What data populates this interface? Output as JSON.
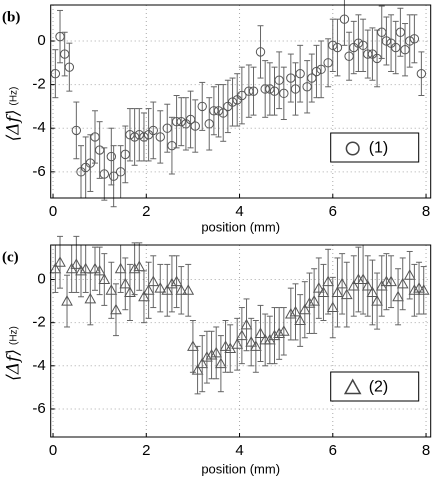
{
  "chart_data": [
    {
      "type": "scatter",
      "panel_label": "(b)",
      "ylabel": "⟨Δf⟩",
      "yunit": "(Hz)",
      "xlabel": "position (mm)",
      "xlim": [
        -0.05,
        8.1
      ],
      "ylim": [
        -7.2,
        1.65
      ],
      "xticks": [
        0,
        2,
        4,
        6,
        8
      ],
      "yticks": [
        0,
        -2,
        -4,
        -6
      ],
      "grid": true,
      "legend": "lower right",
      "series": [
        {
          "name": "(1)",
          "marker": "circle",
          "color": "#555555",
          "x": [
            0.05,
            0.15,
            0.25,
            0.35,
            0.5,
            0.6,
            0.7,
            0.8,
            0.9,
            1.0,
            1.1,
            1.25,
            1.3,
            1.45,
            1.55,
            1.65,
            1.75,
            1.85,
            1.95,
            2.05,
            2.15,
            2.3,
            2.45,
            2.55,
            2.65,
            2.75,
            2.85,
            2.95,
            3.05,
            3.2,
            3.35,
            3.45,
            3.55,
            3.65,
            3.75,
            3.85,
            3.95,
            4.05,
            4.2,
            4.3,
            4.45,
            4.55,
            4.65,
            4.75,
            4.85,
            4.95,
            5.1,
            5.2,
            5.3,
            5.45,
            5.55,
            5.65,
            5.75,
            5.9,
            6.0,
            6.1,
            6.25,
            6.35,
            6.45,
            6.55,
            6.65,
            6.75,
            6.85,
            6.95,
            7.05,
            7.15,
            7.25,
            7.35,
            7.45,
            7.55,
            7.65,
            7.75,
            7.9
          ],
          "values": [
            -1.5,
            0.2,
            -0.6,
            -1.2,
            -4.1,
            -6.0,
            -5.8,
            -5.6,
            -4.4,
            -5.0,
            -6.1,
            -5.3,
            -6.2,
            -6.0,
            -5.2,
            -4.3,
            -4.4,
            -4.3,
            -4.4,
            -4.3,
            -4.1,
            -4.4,
            -4.0,
            -4.8,
            -3.7,
            -3.7,
            -3.8,
            -3.6,
            -3.9,
            -3.0,
            -3.8,
            -3.2,
            -3.2,
            -3.3,
            -3.0,
            -2.8,
            -2.7,
            -2.5,
            -2.3,
            -2.3,
            -0.5,
            -2.2,
            -2.2,
            -2.3,
            -1.8,
            -2.4,
            -1.7,
            -2.2,
            -1.5,
            -2.1,
            -1.7,
            -1.4,
            -1.3,
            -1.0,
            -0.2,
            -0.3,
            1.0,
            -0.7,
            -0.3,
            -0.1,
            -0.2,
            -0.6,
            -0.6,
            -0.8,
            0.4,
            0.0,
            -0.1,
            -0.3,
            0.4,
            -0.4,
            0.0,
            0.1,
            -1.5
          ],
          "errors": [
            1.1,
            1.2,
            1.0,
            1.1,
            1.3,
            1.2,
            1.4,
            1.3,
            1.2,
            1.3,
            1.2,
            1.3,
            1.4,
            1.2,
            1.3,
            1.2,
            1.3,
            1.2,
            1.1,
            1.2,
            1.3,
            1.2,
            1.1,
            1.3,
            1.2,
            1.1,
            1.2,
            1.3,
            1.2,
            1.1,
            1.2,
            1.1,
            1.2,
            1.3,
            1.2,
            1.1,
            1.2,
            1.3,
            1.2,
            1.1,
            1.2,
            1.3,
            1.2,
            1.1,
            1.3,
            1.2,
            1.1,
            1.2,
            1.3,
            1.2,
            1.1,
            1.2,
            1.3,
            1.1,
            1.2,
            1.3,
            1.2,
            1.1,
            1.2,
            1.3,
            1.2,
            1.1,
            1.2,
            1.3,
            1.2,
            1.1,
            1.3,
            1.2,
            1.1,
            1.2,
            1.2,
            1.1,
            1.0
          ]
        }
      ]
    },
    {
      "type": "scatter",
      "panel_label": "(c)",
      "ylabel": "⟨Δf⟩",
      "yunit": "(Hz)",
      "xlabel": "position (mm)",
      "xlim": [
        -0.05,
        8.1
      ],
      "ylim": [
        -7.3,
        1.6
      ],
      "xticks": [
        0,
        2,
        4,
        6,
        8
      ],
      "yticks": [
        0,
        -2,
        -4,
        -6
      ],
      "grid": true,
      "legend": "lower right",
      "series": [
        {
          "name": "(2)",
          "marker": "triangle",
          "color": "#555555",
          "x": [
            0.05,
            0.15,
            0.3,
            0.4,
            0.5,
            0.6,
            0.7,
            0.8,
            0.9,
            1.0,
            1.1,
            1.25,
            1.35,
            1.45,
            1.55,
            1.65,
            1.75,
            1.85,
            1.95,
            2.05,
            2.15,
            2.3,
            2.45,
            2.55,
            2.65,
            2.75,
            2.9,
            3.0,
            3.1,
            3.2,
            3.3,
            3.4,
            3.5,
            3.6,
            3.7,
            3.8,
            3.95,
            4.05,
            4.15,
            4.25,
            4.35,
            4.45,
            4.55,
            4.65,
            4.75,
            4.85,
            4.95,
            5.1,
            5.2,
            5.3,
            5.4,
            5.5,
            5.6,
            5.7,
            5.8,
            5.9,
            6.0,
            6.1,
            6.2,
            6.3,
            6.45,
            6.55,
            6.65,
            6.75,
            6.85,
            6.95,
            7.05,
            7.15,
            7.25,
            7.4,
            7.5,
            7.65,
            7.75,
            7.85,
            7.95
          ],
          "values": [
            0.5,
            0.8,
            -1.0,
            0.5,
            0.7,
            0.4,
            0.5,
            -0.9,
            0.5,
            0.4,
            0.0,
            -0.5,
            -1.4,
            0.5,
            -0.2,
            -0.6,
            0.5,
            0.6,
            -0.8,
            -0.5,
            -0.1,
            -0.4,
            -0.5,
            -0.2,
            -0.1,
            -0.5,
            -0.5,
            -3.1,
            -4.2,
            -3.9,
            -3.6,
            -3.5,
            -3.4,
            -3.9,
            -3.1,
            -3.2,
            -3.0,
            -2.6,
            -2.1,
            -2.9,
            -3.1,
            -2.5,
            -2.8,
            -2.8,
            -2.6,
            -2.5,
            -2.4,
            -1.6,
            -1.5,
            -1.9,
            -1.4,
            -1.1,
            -1.0,
            -0.4,
            -0.6,
            -0.1,
            -1.3,
            -0.6,
            -0.2,
            -0.7,
            -0.3,
            0.0,
            0.0,
            -0.3,
            -0.6,
            -1.0,
            -0.3,
            -0.1,
            -0.1,
            -0.8,
            -0.2,
            0.2,
            -0.5,
            -0.4,
            -0.5
          ],
          "errors": [
            1.1,
            1.2,
            1.2,
            1.1,
            1.3,
            1.2,
            1.1,
            1.2,
            1.0,
            1.1,
            1.2,
            1.3,
            1.2,
            1.1,
            1.2,
            1.3,
            1.2,
            1.1,
            1.2,
            1.3,
            1.2,
            1.1,
            1.2,
            1.3,
            1.2,
            1.1,
            1.2,
            1.2,
            1.1,
            1.3,
            1.2,
            1.1,
            1.2,
            1.3,
            1.2,
            1.1,
            1.2,
            1.3,
            1.2,
            1.1,
            1.2,
            1.3,
            1.2,
            1.1,
            1.3,
            1.2,
            1.1,
            1.2,
            1.3,
            1.2,
            1.3,
            1.4,
            1.5,
            1.4,
            1.3,
            1.5,
            1.4,
            1.6,
            1.4,
            1.5,
            1.4,
            1.5,
            1.6,
            1.4,
            1.5,
            1.3,
            1.4,
            1.3,
            1.2,
            1.3,
            1.2,
            1.1,
            1.2,
            1.2,
            1.1
          ]
        }
      ]
    }
  ]
}
